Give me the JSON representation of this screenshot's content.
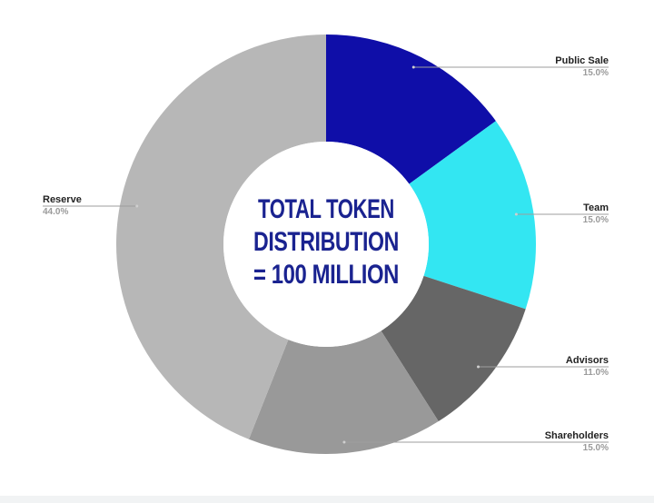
{
  "chart_data": {
    "type": "pie",
    "donut": true,
    "center_text": [
      "TOTAL TOKEN",
      "DISTRIBUTION",
      "= 100 MILLION"
    ],
    "slices": [
      {
        "name": "Public Sale",
        "value": 15.0,
        "label": "15.0%",
        "color": "#0f0ea8"
      },
      {
        "name": "Team",
        "value": 15.0,
        "label": "15.0%",
        "color": "#33e6f2"
      },
      {
        "name": "Advisors",
        "value": 11.0,
        "label": "11.0%",
        "color": "#666666"
      },
      {
        "name": "Shareholders",
        "value": 15.0,
        "label": "15.0%",
        "color": "#999999"
      },
      {
        "name": "Reserve",
        "value": 44.0,
        "label": "44.0%",
        "color": "#b7b7b7"
      }
    ],
    "legend": "none"
  }
}
